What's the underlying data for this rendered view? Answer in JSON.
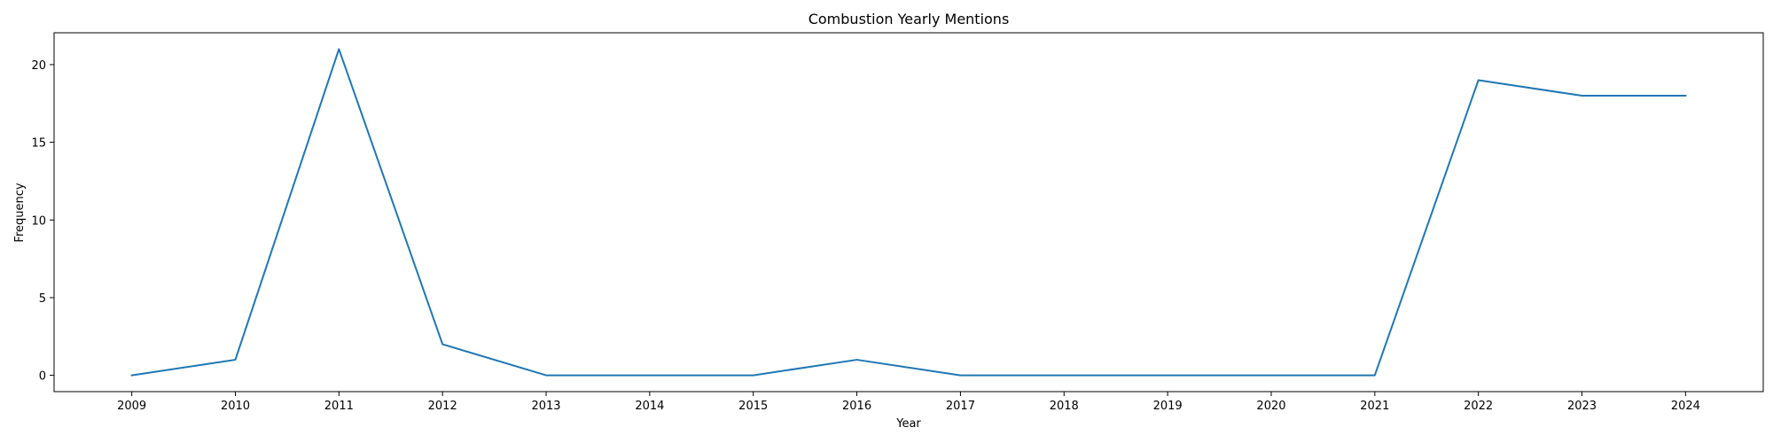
{
  "chart_data": {
    "type": "line",
    "title": "Combustion Yearly Mentions",
    "xlabel": "Year",
    "ylabel": "Frequency",
    "x": [
      2009,
      2010,
      2011,
      2012,
      2013,
      2014,
      2015,
      2016,
      2017,
      2018,
      2019,
      2020,
      2021,
      2022,
      2023,
      2024
    ],
    "series": [
      {
        "values": [
          0,
          1,
          21,
          2,
          0,
          0,
          0,
          1,
          0,
          0,
          0,
          0,
          0,
          19,
          18,
          18
        ],
        "color": "#1f77b4"
      }
    ],
    "xlim": [
      2008.25,
      2024.75
    ],
    "ylim": [
      -1.05,
      22.05
    ],
    "yticks": [
      0,
      5,
      10,
      15,
      20
    ],
    "grid": false,
    "legend": "none"
  }
}
